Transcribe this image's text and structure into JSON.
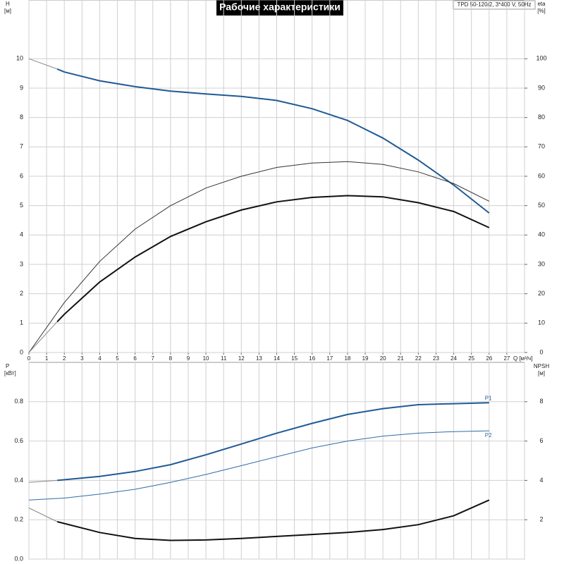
{
  "chart_data": [
    {
      "type": "line",
      "title": "Рабочие характеристики",
      "annotation": "TPD 50-120/2, 3*400 V, 50Hz",
      "x_label": "Q [м³/ч]",
      "y_label": "H",
      "y_unit": "[м]",
      "y2_label": "eta",
      "y2_unit": "[%]",
      "xlim": [
        0,
        28
      ],
      "xticks": [
        0,
        1,
        2,
        3,
        4,
        5,
        6,
        7,
        8,
        9,
        10,
        11,
        12,
        13,
        14,
        15,
        16,
        17,
        18,
        19,
        20,
        21,
        22,
        23,
        24,
        25,
        26,
        27
      ],
      "ylim": [
        0,
        12
      ],
      "yticks": [
        0,
        1,
        2,
        3,
        4,
        5,
        6,
        7,
        8,
        9,
        10
      ],
      "y2lim": [
        0,
        120
      ],
      "y2ticks": [
        0,
        10,
        20,
        30,
        40,
        50,
        60,
        70,
        80,
        90,
        100
      ],
      "grid": true,
      "series": [
        {
          "color": "#888888",
          "width": 1,
          "x": [
            0,
            1.6
          ],
          "values": [
            10,
            9.65
          ]
        },
        {
          "color": "#1f5a96",
          "width": 2,
          "x": [
            1.6,
            2,
            4,
            6,
            8,
            10,
            12,
            14,
            16,
            18,
            20,
            22,
            24,
            26
          ],
          "values": [
            9.65,
            9.55,
            9.25,
            9.05,
            8.9,
            8.8,
            8.72,
            8.58,
            8.3,
            7.9,
            7.3,
            6.55,
            5.7,
            4.75
          ]
        },
        {
          "color": "#333333",
          "width": 1,
          "axis": "y2",
          "x": [
            0,
            2,
            4,
            6,
            8,
            10,
            12,
            14,
            16,
            18,
            20,
            22,
            24,
            26
          ],
          "values": [
            0,
            17,
            31,
            42,
            50,
            56,
            60,
            63,
            64.5,
            65,
            64,
            61.5,
            57.5,
            51.5
          ]
        },
        {
          "color": "#888888",
          "width": 1,
          "axis": "y2",
          "x": [
            0,
            1.6
          ],
          "values": [
            0,
            10.5
          ]
        },
        {
          "color": "#111111",
          "width": 2,
          "axis": "y2",
          "x": [
            1.6,
            2,
            4,
            6,
            8,
            10,
            12,
            14,
            16,
            18,
            20,
            22,
            24,
            26
          ],
          "values": [
            10.5,
            13,
            24,
            32.5,
            39.5,
            44.5,
            48.5,
            51.3,
            52.8,
            53.4,
            53,
            51,
            48,
            42.5
          ]
        }
      ]
    },
    {
      "type": "line",
      "y_label": "P",
      "y_unit": "[кВт]",
      "y2_label": "NPSH",
      "y2_unit": "[м]",
      "xlim": [
        0,
        28
      ],
      "ylim": [
        0,
        1
      ],
      "yticks": [
        {
          "value": 0,
          "label": "0.0"
        },
        0.2,
        0.4,
        0.6,
        0.8
      ],
      "y2lim": [
        0,
        10
      ],
      "y2ticks": [
        2,
        4,
        6,
        8
      ],
      "grid": true,
      "series": [
        {
          "color": "#888888",
          "width": 1,
          "x": [
            0,
            1.6
          ],
          "values": [
            0.39,
            0.4
          ]
        },
        {
          "name": "P1",
          "color": "#1f5a96",
          "width": 2,
          "x": [
            1.6,
            4,
            6,
            8,
            10,
            12,
            14,
            16,
            18,
            20,
            22,
            24,
            26
          ],
          "values": [
            0.4,
            0.42,
            0.445,
            0.48,
            0.53,
            0.585,
            0.64,
            0.69,
            0.735,
            0.765,
            0.785,
            0.79,
            0.795
          ]
        },
        {
          "name": "P2",
          "color": "#2e6ca8",
          "width": 1,
          "x": [
            0,
            2,
            4,
            6,
            8,
            10,
            12,
            14,
            16,
            18,
            20,
            22,
            24,
            26
          ],
          "values": [
            0.3,
            0.31,
            0.33,
            0.355,
            0.39,
            0.43,
            0.475,
            0.52,
            0.565,
            0.6,
            0.625,
            0.64,
            0.648,
            0.652
          ]
        },
        {
          "color": "#888888",
          "width": 1,
          "axis": "y2",
          "x": [
            0,
            1.6
          ],
          "values": [
            2.6,
            1.9
          ]
        },
        {
          "color": "#111111",
          "width": 2,
          "axis": "y2",
          "x": [
            1.6,
            4,
            6,
            8,
            10,
            12,
            14,
            16,
            18,
            20,
            22,
            24,
            26
          ],
          "values": [
            1.9,
            1.35,
            1.05,
            0.95,
            0.97,
            1.05,
            1.15,
            1.25,
            1.35,
            1.5,
            1.75,
            2.2,
            3.0
          ]
        }
      ]
    }
  ]
}
